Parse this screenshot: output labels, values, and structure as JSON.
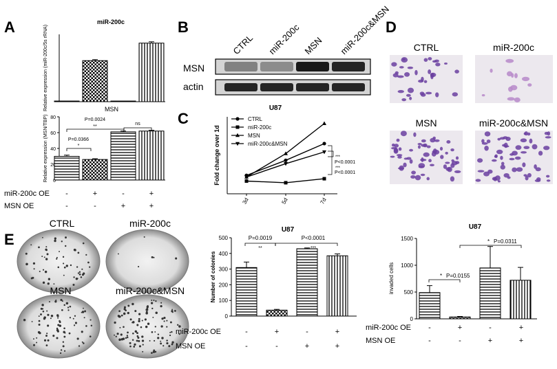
{
  "panel_labels": {
    "a": "A",
    "b": "B",
    "c": "C",
    "d": "D",
    "e": "E"
  },
  "treatment_rows": {
    "mir_label": "miR-200c OE",
    "msn_label": "MSN OE",
    "mir_signs": [
      "-",
      "+",
      "-",
      "+"
    ],
    "msn_signs": [
      "-",
      "-",
      "+",
      "+"
    ]
  },
  "blot": {
    "lanes": [
      "CTRL",
      "miR-200c",
      "MSN",
      "miR-200c&MSN"
    ],
    "rows": [
      "MSN",
      "actin"
    ],
    "msn_band_intensity": [
      0.55,
      0.5,
      1.0,
      0.95
    ],
    "actin_band_intensity": [
      0.95,
      0.95,
      0.95,
      0.95
    ]
  },
  "images_d": {
    "labels": [
      "CTRL",
      "miR-200c",
      "MSN",
      "miR-200c&MSN"
    ],
    "stain_color": "#6b3fa0"
  },
  "images_e": {
    "labels": [
      "CTRL",
      "miR-200c",
      "MSN",
      "miR-200c&MSN"
    ]
  },
  "chart_data": [
    {
      "id": "A_top",
      "type": "bar",
      "title": "miR-200c",
      "ylabel": "Relative expression (miR-200c/5s rRNA)",
      "values": [
        0.01,
        0.61,
        0.01,
        0.87
      ],
      "errors": [
        0,
        0.015,
        0,
        0.02
      ],
      "ylim": [
        0,
        1
      ],
      "patterns": [
        "h",
        "check",
        "v",
        "v"
      ]
    },
    {
      "id": "A_bottom",
      "type": "bar",
      "title": "MSN",
      "ylabel": "Relative expression (MSN/TBP)",
      "values": [
        30,
        26,
        61,
        62
      ],
      "errors": [
        1.5,
        1,
        1,
        1
      ],
      "ylim": [
        0,
        80
      ],
      "yticks": [
        "0",
        "20",
        "40",
        "60",
        "80"
      ],
      "annotations": [
        "P=0.0366",
        "*",
        "P=0.0024",
        "**",
        "ns"
      ],
      "patterns": [
        "h",
        "check",
        "h",
        "v"
      ]
    },
    {
      "id": "C",
      "type": "line",
      "title": "U87",
      "ylabel": "Fold change over 1d",
      "categories": [
        "3d",
        "5d",
        "7d"
      ],
      "series": [
        {
          "name": "CTRL",
          "values": [
            1.05,
            1.5,
            2.0
          ],
          "marker": "circle"
        },
        {
          "name": "miR-200c",
          "values": [
            0.88,
            0.83,
            0.95
          ],
          "marker": "square"
        },
        {
          "name": "MSN",
          "values": [
            1.0,
            1.7,
            2.6
          ],
          "marker": "triangle"
        },
        {
          "name": "miR-200c&MSN",
          "values": [
            1.0,
            1.4,
            1.75
          ],
          "marker": "triangle-down"
        }
      ],
      "annotations": [
        "***",
        "P<0.0001",
        "***",
        "P<0.0001"
      ]
    },
    {
      "id": "E_colonies",
      "type": "bar",
      "title": "U87",
      "ylabel": "Number of colonies",
      "values": [
        310,
        38,
        430,
        385
      ],
      "errors": [
        35,
        5,
        5,
        12
      ],
      "ylim": [
        0,
        500
      ],
      "yticks": [
        "0",
        "100",
        "200",
        "300",
        "400",
        "500"
      ],
      "annotations": [
        "P=0.0019",
        "**",
        "P<0.0001",
        "***"
      ],
      "patterns": [
        "h",
        "check",
        "h",
        "v"
      ]
    },
    {
      "id": "E_invaded",
      "type": "bar",
      "title": "U87",
      "ylabel": "invaded cells",
      "values": [
        490,
        35,
        950,
        720
      ],
      "errors": [
        130,
        10,
        400,
        240
      ],
      "ylim": [
        0,
        1500
      ],
      "yticks": [
        "0",
        "500",
        "1000",
        "1500"
      ],
      "annotations": [
        "*",
        "P=0.0155",
        "*",
        "P=0.0311"
      ],
      "patterns": [
        "h",
        "check",
        "h",
        "v"
      ]
    }
  ]
}
